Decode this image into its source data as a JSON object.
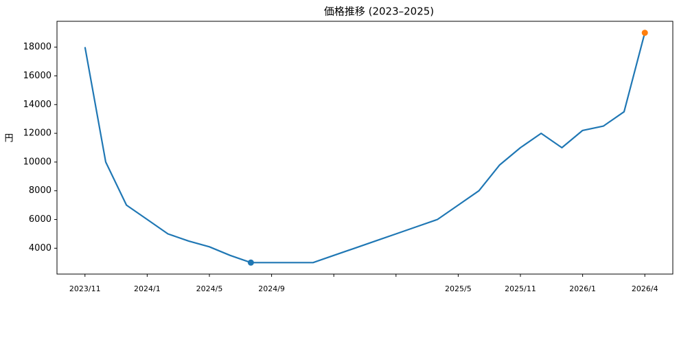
{
  "chart_data": {
    "type": "line",
    "title": "価格推移 (2023–2025)",
    "y_label": "円",
    "categories": [
      "2023/11",
      null,
      null,
      "2024/1",
      null,
      null,
      "2024/5",
      null,
      null,
      "2024/9",
      null,
      null,
      null,
      null,
      null,
      null,
      null,
      null,
      "2025/5",
      null,
      null,
      "2025/11",
      null,
      null,
      "2026/1",
      null,
      null,
      "2026/4"
    ],
    "xtick_step": 3,
    "series": [
      {
        "color": "#1f77b4",
        "values": [
          18000,
          10000,
          7000,
          6000,
          5000,
          4500,
          4100,
          3500,
          3000,
          3000,
          3000,
          3000,
          3500,
          4000,
          4500,
          5000,
          5500,
          6000,
          7000,
          8000,
          9800,
          11000,
          12000,
          11000,
          12200,
          12500,
          13500,
          19000
        ]
      }
    ],
    "highlight_min_color": "#1f77b4",
    "highlight_max_color": "#ff7f0e",
    "ylim": [
      2200,
      19800
    ],
    "yticks": [
      4000,
      6000,
      8000,
      10000,
      12000,
      14000,
      16000,
      18000
    ]
  }
}
